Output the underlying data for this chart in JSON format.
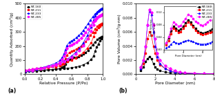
{
  "labels": [
    "NT-160",
    "NT-211",
    "NT-233",
    "NT-285"
  ],
  "colors": [
    "black",
    "red",
    "blue",
    "magenta"
  ],
  "markers": [
    "s",
    "s",
    "^",
    "D"
  ],
  "markerfacecolors": [
    "black",
    "red",
    "blue",
    "magenta"
  ],
  "plot_a": {
    "xlabel": "Relative Pressure (P/Po)",
    "ylabel": "Quantity Adsorbed (cm³/g)",
    "ylim": [
      0,
      500
    ],
    "xlim": [
      0.0,
      1.0
    ],
    "series": [
      {
        "x_ads": [
          0.01,
          0.05,
          0.1,
          0.15,
          0.2,
          0.25,
          0.3,
          0.35,
          0.4,
          0.45,
          0.5,
          0.55,
          0.6,
          0.65,
          0.7,
          0.75,
          0.8,
          0.85,
          0.88,
          0.9,
          0.92,
          0.94,
          0.96,
          0.98,
          0.99
        ],
        "y_ads": [
          18,
          20,
          22,
          24,
          26,
          28,
          30,
          32,
          35,
          37,
          40,
          43,
          47,
          52,
          58,
          68,
          82,
          105,
          130,
          165,
          195,
          215,
          235,
          250,
          265
        ],
        "x_des": [
          0.99,
          0.97,
          0.95,
          0.93,
          0.9,
          0.87,
          0.84,
          0.81,
          0.78,
          0.75,
          0.72,
          0.69,
          0.66,
          0.63,
          0.6,
          0.57,
          0.54,
          0.52,
          0.5,
          0.48,
          0.45,
          0.4,
          0.3,
          0.2,
          0.1
        ],
        "y_des": [
          265,
          260,
          255,
          245,
          230,
          210,
          190,
          170,
          155,
          142,
          133,
          127,
          122,
          118,
          113,
          105,
          90,
          72,
          58,
          50,
          43,
          38,
          33,
          28,
          20
        ]
      },
      {
        "x_ads": [
          0.01,
          0.05,
          0.1,
          0.15,
          0.2,
          0.25,
          0.3,
          0.35,
          0.4,
          0.45,
          0.5,
          0.55,
          0.6,
          0.65,
          0.7,
          0.75,
          0.8,
          0.85,
          0.88,
          0.9,
          0.92,
          0.94,
          0.96,
          0.98,
          0.99
        ],
        "y_ads": [
          28,
          32,
          36,
          40,
          44,
          48,
          53,
          58,
          63,
          70,
          78,
          88,
          100,
          115,
          133,
          155,
          185,
          225,
          265,
          295,
          315,
          330,
          342,
          350,
          358
        ],
        "x_des": [
          0.99,
          0.97,
          0.95,
          0.93,
          0.9,
          0.87,
          0.84,
          0.81,
          0.78,
          0.75,
          0.72,
          0.69,
          0.66,
          0.63,
          0.6,
          0.57,
          0.54,
          0.52,
          0.5,
          0.48,
          0.45,
          0.4,
          0.3,
          0.2,
          0.1
        ],
        "y_des": [
          358,
          355,
          350,
          340,
          320,
          298,
          275,
          252,
          232,
          215,
          200,
          188,
          178,
          170,
          163,
          155,
          135,
          110,
          88,
          72,
          60,
          52,
          45,
          38,
          28
        ]
      },
      {
        "x_ads": [
          0.01,
          0.05,
          0.1,
          0.15,
          0.2,
          0.25,
          0.3,
          0.35,
          0.4,
          0.45,
          0.5,
          0.55,
          0.6,
          0.65,
          0.7,
          0.75,
          0.8,
          0.85,
          0.88,
          0.9,
          0.92,
          0.94,
          0.96,
          0.98,
          0.99
        ],
        "y_ads": [
          22,
          28,
          33,
          38,
          43,
          48,
          55,
          62,
          70,
          80,
          93,
          110,
          130,
          155,
          185,
          225,
          275,
          335,
          385,
          415,
          435,
          448,
          458,
          463,
          467
        ],
        "x_des": [
          0.99,
          0.97,
          0.95,
          0.93,
          0.9,
          0.87,
          0.84,
          0.81,
          0.78,
          0.75,
          0.72,
          0.69,
          0.66,
          0.63,
          0.6,
          0.57,
          0.54,
          0.52,
          0.5,
          0.48,
          0.45,
          0.4,
          0.3,
          0.2,
          0.1
        ],
        "y_des": [
          467,
          462,
          455,
          445,
          428,
          408,
          385,
          360,
          335,
          312,
          292,
          275,
          260,
          248,
          238,
          228,
          205,
          175,
          145,
          120,
          98,
          80,
          60,
          45,
          28
        ]
      },
      {
        "x_ads": [
          0.01,
          0.05,
          0.1,
          0.15,
          0.2,
          0.25,
          0.3,
          0.35,
          0.4,
          0.45,
          0.5,
          0.55,
          0.6,
          0.65,
          0.7,
          0.75,
          0.8,
          0.85,
          0.88,
          0.9,
          0.92,
          0.94,
          0.96,
          0.98,
          0.99
        ],
        "y_ads": [
          25,
          30,
          35,
          39,
          43,
          48,
          54,
          60,
          68,
          77,
          88,
          103,
          120,
          142,
          170,
          205,
          250,
          305,
          350,
          378,
          395,
          408,
          416,
          420,
          424
        ],
        "x_des": [
          0.99,
          0.97,
          0.95,
          0.93,
          0.9,
          0.87,
          0.84,
          0.81,
          0.78,
          0.75,
          0.72,
          0.69,
          0.66,
          0.63,
          0.6,
          0.57,
          0.54,
          0.52,
          0.5,
          0.48,
          0.45,
          0.4,
          0.3,
          0.2,
          0.1
        ],
        "y_des": [
          424,
          420,
          414,
          405,
          388,
          368,
          345,
          320,
          297,
          276,
          258,
          242,
          228,
          218,
          210,
          202,
          182,
          155,
          128,
          105,
          85,
          70,
          54,
          42,
          27
        ]
      }
    ]
  },
  "plot_b": {
    "xlabel": "Pore Diameter (nm)",
    "ylabel": "Pore Volume (cm³/g·nm)",
    "xlim": [
      0,
      8
    ],
    "ylim": [
      0,
      0.01
    ],
    "series": [
      {
        "x": [
          0.5,
          0.8,
          1.0,
          1.2,
          1.4,
          1.6,
          1.8,
          2.0,
          2.2,
          2.5,
          3.0,
          3.5,
          4.0,
          4.5,
          5.0,
          6.0,
          7.0,
          8.0
        ],
        "y": [
          0.0005,
          0.001,
          0.0018,
          0.0022,
          0.0025,
          0.0022,
          0.0015,
          0.001,
          0.0007,
          0.0005,
          0.0003,
          0.0002,
          0.00015,
          0.0001,
          0.0001,
          8e-05,
          6e-05,
          5e-05
        ]
      },
      {
        "x": [
          0.5,
          0.8,
          1.0,
          1.2,
          1.4,
          1.6,
          1.8,
          2.0,
          2.2,
          2.5,
          3.0,
          3.5,
          4.0,
          4.5,
          5.0,
          6.0,
          7.0,
          8.0
        ],
        "y": [
          0.0008,
          0.0015,
          0.003,
          0.005,
          0.006,
          0.0055,
          0.004,
          0.003,
          0.002,
          0.0013,
          0.0008,
          0.0005,
          0.0003,
          0.0002,
          0.00015,
          0.0001,
          8e-05,
          6e-05
        ]
      },
      {
        "x": [
          0.5,
          0.8,
          1.0,
          1.2,
          1.4,
          1.6,
          1.8,
          2.0,
          2.2,
          2.5,
          3.0,
          3.5,
          4.0,
          4.5,
          5.0,
          6.0,
          7.0,
          8.0
        ],
        "y": [
          0.0008,
          0.002,
          0.004,
          0.007,
          0.009,
          0.0085,
          0.006,
          0.004,
          0.0025,
          0.0015,
          0.0008,
          0.0005,
          0.0003,
          0.0002,
          0.00015,
          0.0001,
          8e-05,
          6e-05
        ]
      },
      {
        "x": [
          0.5,
          0.8,
          1.0,
          1.2,
          1.4,
          1.6,
          1.8,
          2.0,
          2.2,
          2.5,
          3.0,
          3.5,
          4.0,
          4.5,
          5.0,
          6.0,
          7.0,
          8.0
        ],
        "y": [
          0.001,
          0.002,
          0.004,
          0.007,
          0.0092,
          0.0088,
          0.007,
          0.005,
          0.003,
          0.002,
          0.0012,
          0.0008,
          0.0005,
          0.0003,
          0.0002,
          0.00015,
          0.0001,
          8e-05
        ]
      }
    ]
  },
  "inset": {
    "xlim": [
      0,
      10
    ],
    "ylim": [
      0.0,
      0.14
    ],
    "xlabel": "Pore Diameter (nm)",
    "ylabel": "Pore Volume\n(cm³/nm)",
    "series": [
      {
        "x": [
          0.5,
          1,
          1.5,
          2,
          2.5,
          3,
          3.5,
          4,
          4.5,
          5,
          5.5,
          6,
          6.5,
          7,
          7.5,
          8,
          8.5,
          9,
          9.5,
          10
        ],
        "y": [
          0.02,
          0.038,
          0.06,
          0.075,
          0.068,
          0.062,
          0.065,
          0.075,
          0.085,
          0.095,
          0.088,
          0.078,
          0.068,
          0.06,
          0.055,
          0.053,
          0.055,
          0.058,
          0.062,
          0.065
        ]
      },
      {
        "x": [
          0.5,
          1,
          1.5,
          2,
          2.5,
          3,
          3.5,
          4,
          4.5,
          5,
          5.5,
          6,
          6.5,
          7,
          7.5,
          8,
          8.5,
          9,
          9.5,
          10
        ],
        "y": [
          0.015,
          0.028,
          0.05,
          0.068,
          0.062,
          0.055,
          0.058,
          0.068,
          0.078,
          0.088,
          0.082,
          0.072,
          0.062,
          0.055,
          0.05,
          0.048,
          0.05,
          0.052,
          0.055,
          0.058
        ]
      },
      {
        "x": [
          0.5,
          1,
          1.5,
          2,
          2.5,
          3,
          3.5,
          4,
          4.5,
          5,
          5.5,
          6,
          6.5,
          7,
          7.5,
          8,
          8.5,
          9,
          9.5,
          10
        ],
        "y": [
          0.005,
          0.01,
          0.018,
          0.025,
          0.022,
          0.02,
          0.022,
          0.025,
          0.028,
          0.03,
          0.028,
          0.025,
          0.022,
          0.02,
          0.018,
          0.017,
          0.018,
          0.02,
          0.022,
          0.025
        ]
      },
      {
        "x": [
          0.5,
          1,
          1.5,
          2,
          2.5,
          3,
          3.5,
          4,
          4.5,
          5,
          5.5,
          6,
          6.5,
          7,
          7.5,
          8,
          8.5,
          9,
          9.5,
          10
        ],
        "y": [
          0.022,
          0.042,
          0.068,
          0.088,
          0.082,
          0.075,
          0.078,
          0.09,
          0.1,
          0.112,
          0.108,
          0.1,
          0.09,
          0.085,
          0.08,
          0.078,
          0.082,
          0.088,
          0.095,
          0.105
        ]
      }
    ]
  }
}
